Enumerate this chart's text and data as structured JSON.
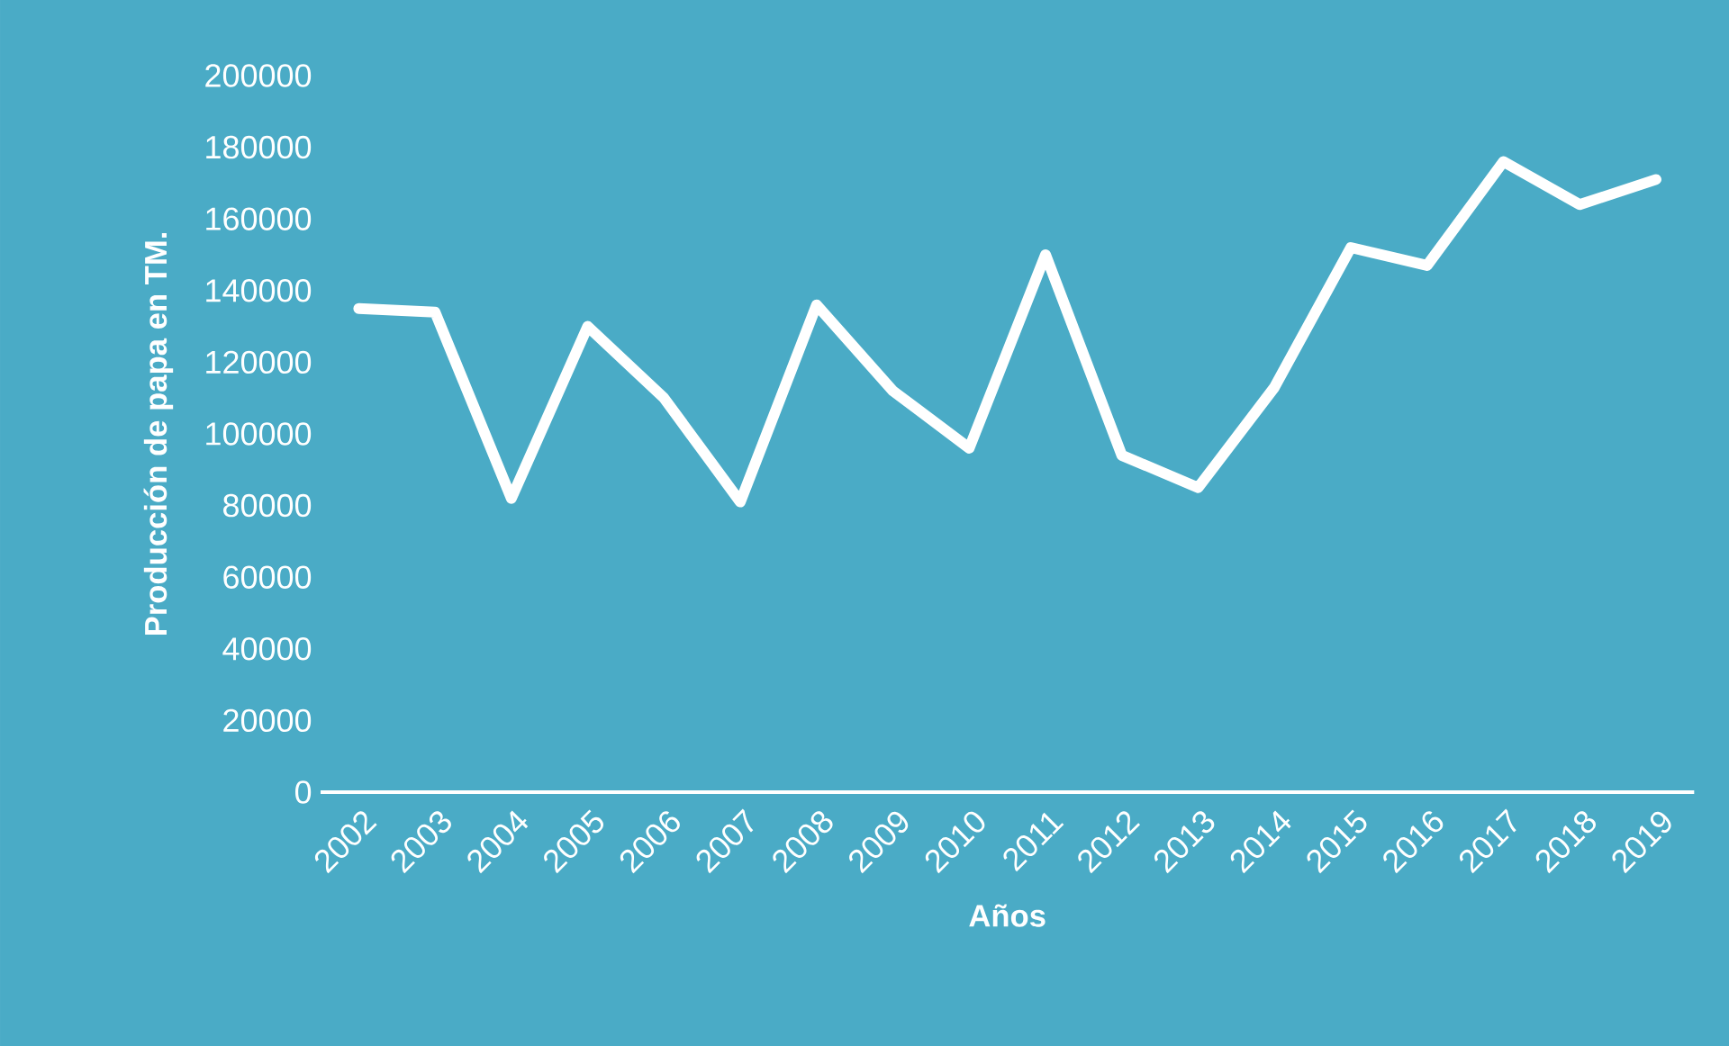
{
  "chart_data": {
    "type": "line",
    "xlabel": "Años",
    "ylabel": "Producción de papa en TM.",
    "categories": [
      "2002",
      "2003",
      "2004",
      "2005",
      "2006",
      "2007",
      "2008",
      "2009",
      "2010",
      "2011",
      "2012",
      "2013",
      "2014",
      "2015",
      "2016",
      "2017",
      "2018",
      "2019"
    ],
    "values": [
      135000,
      134000,
      82000,
      130000,
      110000,
      81000,
      136000,
      112000,
      96000,
      150000,
      94000,
      85000,
      113000,
      152000,
      147000,
      176000,
      164000,
      171000
    ],
    "color": "#ffffff",
    "line_style": "solid",
    "grid": false,
    "ylim": [
      0,
      200000
    ],
    "yticks": [
      0,
      20000,
      40000,
      60000,
      80000,
      100000,
      120000,
      140000,
      160000,
      180000,
      200000
    ]
  }
}
